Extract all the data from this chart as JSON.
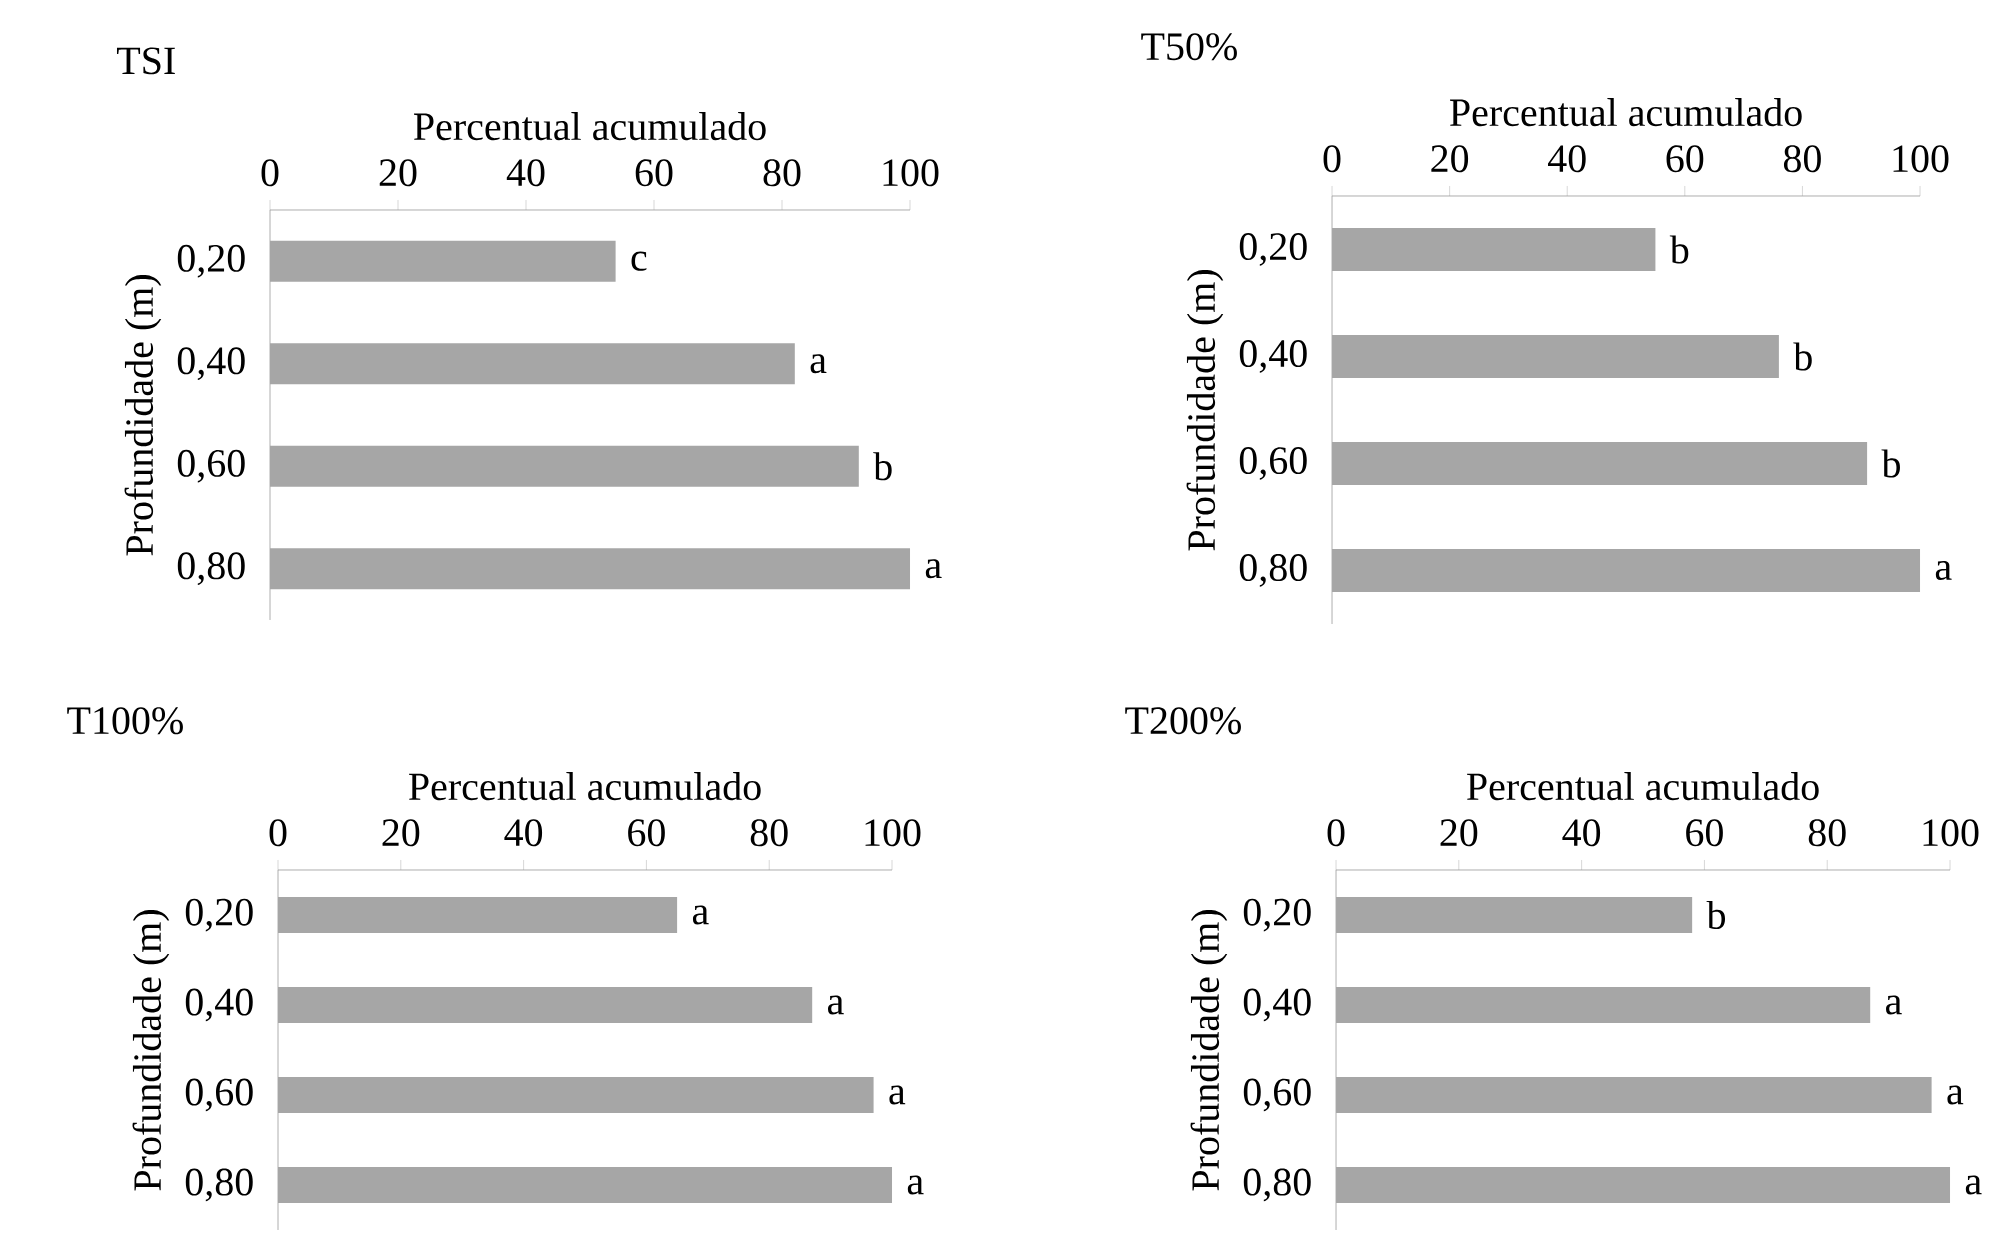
{
  "chart_data": [
    {
      "type": "bar",
      "orientation": "horizontal",
      "title": "TSI",
      "xlabel": "Percentual acumulado",
      "ylabel": "Profundidade (m)",
      "categories": [
        "0,20",
        "0,40",
        "0,60",
        "0,80"
      ],
      "values": [
        54,
        82,
        92,
        100
      ],
      "color": "#a6a6a6",
      "xlim": [
        0,
        100
      ],
      "xticks": [
        0,
        20,
        40,
        60,
        80,
        100
      ],
      "annotations": [
        {
          "text": "c",
          "x": 54,
          "y": "0,20"
        },
        {
          "text": "a",
          "x": 82,
          "y": "0,40"
        },
        {
          "text": "b",
          "x": 92,
          "y": "0,60"
        },
        {
          "text": "a",
          "x": 100,
          "y": "0,80"
        }
      ]
    },
    {
      "type": "bar",
      "orientation": "horizontal",
      "title": "T50%",
      "xlabel": "Percentual acumulado",
      "ylabel": "Profundidade (m)",
      "categories": [
        "0,20",
        "0,40",
        "0,60",
        "0,80"
      ],
      "values": [
        55,
        76,
        91,
        100
      ],
      "color": "#a6a6a6",
      "xlim": [
        0,
        100
      ],
      "xticks": [
        0,
        20,
        40,
        60,
        80,
        100
      ],
      "annotations": [
        {
          "text": "b",
          "x": 55,
          "y": "0,20"
        },
        {
          "text": "b",
          "x": 76,
          "y": "0,40"
        },
        {
          "text": "b",
          "x": 91,
          "y": "0,60"
        },
        {
          "text": "a",
          "x": 100,
          "y": "0,80"
        }
      ]
    },
    {
      "type": "bar",
      "orientation": "horizontal",
      "title": "T100%",
      "xlabel": "Percentual acumulado",
      "ylabel": "Profundidade (m)",
      "categories": [
        "0,20",
        "0,40",
        "0,60",
        "0,80"
      ],
      "values": [
        65,
        87,
        97,
        100
      ],
      "color": "#a6a6a6",
      "xlim": [
        0,
        100
      ],
      "xticks": [
        0,
        20,
        40,
        60,
        80,
        100
      ],
      "annotations": [
        {
          "text": "a",
          "x": 65,
          "y": "0,20"
        },
        {
          "text": "a",
          "x": 87,
          "y": "0,40"
        },
        {
          "text": "a",
          "x": 97,
          "y": "0,60"
        },
        {
          "text": "a",
          "x": 100,
          "y": "0,80"
        }
      ]
    },
    {
      "type": "bar",
      "orientation": "horizontal",
      "title": "T200%",
      "xlabel": "Percentual acumulado",
      "ylabel": "Profundidade (m)",
      "categories": [
        "0,20",
        "0,40",
        "0,60",
        "0,80"
      ],
      "values": [
        58,
        87,
        97,
        100
      ],
      "color": "#a6a6a6",
      "xlim": [
        0,
        100
      ],
      "xticks": [
        0,
        20,
        40,
        60,
        80,
        100
      ],
      "annotations": [
        {
          "text": "b",
          "x": 58,
          "y": "0,20"
        },
        {
          "text": "a",
          "x": 87,
          "y": "0,40"
        },
        {
          "text": "a",
          "x": 97,
          "y": "0,60"
        },
        {
          "text": "a",
          "x": 100,
          "y": "0,80"
        }
      ]
    }
  ]
}
